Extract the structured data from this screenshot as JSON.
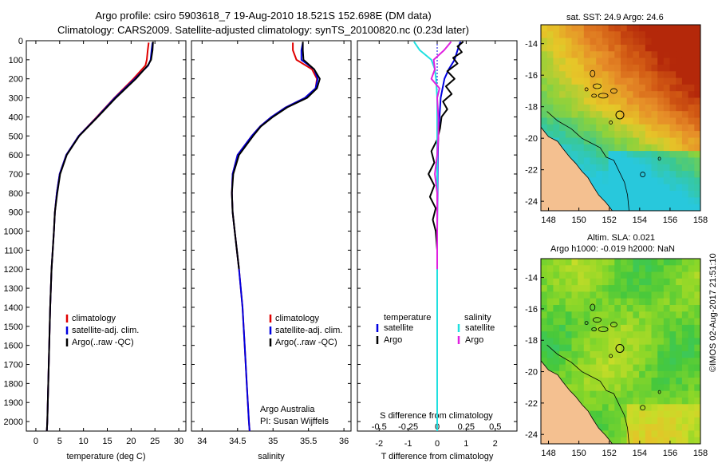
{
  "header": {
    "title_line1": "Argo profile: csiro 5903618_7 19-Aug-2010 18.521S 152.698E (DM data)",
    "title_line2": "Climatology: CARS2009. Satellite-adjusted climatology: synTS_20100820.nc (0.23d later)"
  },
  "colors": {
    "climatology": "#e00000",
    "satellite": "#0000e0",
    "argo": "#000000",
    "salinity_satellite": "#20e0e0",
    "salinity_argo": "#e020e0",
    "land": "#f4c090"
  },
  "chart_data": [
    {
      "type": "line",
      "name": "temperature",
      "xlabel": "temperature (deg C)",
      "xticks": [
        0,
        5,
        10,
        15,
        20,
        25,
        30
      ],
      "xlim": [
        -2,
        31.5
      ],
      "ylim": [
        0,
        2050
      ],
      "yticks": [
        0,
        100,
        200,
        300,
        400,
        500,
        600,
        700,
        800,
        900,
        1000,
        1100,
        1200,
        1300,
        1400,
        1500,
        1600,
        1700,
        1800,
        1900,
        2000
      ],
      "legend": [
        "climatology",
        "satellite-adj. clim.",
        "Argo(..raw -QC)"
      ],
      "series": [
        {
          "name": "climatology",
          "depth": [
            10,
            50,
            100,
            130,
            200,
            300,
            400,
            500,
            600,
            700,
            800,
            900,
            1000,
            1200,
            1400,
            1600,
            1800,
            2000,
            2050
          ],
          "values": [
            23.7,
            23.5,
            23.3,
            23.0,
            20.5,
            16.5,
            12.8,
            9.0,
            6.4,
            5.0,
            4.4,
            4.0,
            3.8,
            3.3,
            3.0,
            2.8,
            2.6,
            2.4,
            2.3
          ]
        },
        {
          "name": "satellite-adj. clim.",
          "depth": [
            10,
            50,
            100,
            130,
            200,
            300,
            400,
            500,
            600,
            700,
            800,
            900,
            1000,
            1200,
            1400,
            1600,
            1800,
            2000,
            2050
          ],
          "values": [
            24.5,
            24.3,
            24.1,
            23.6,
            20.8,
            16.6,
            12.9,
            9.0,
            6.4,
            5.0,
            4.4,
            4.0,
            3.8,
            3.3,
            3.0,
            2.8,
            2.6,
            2.4,
            2.3
          ]
        },
        {
          "name": "Argo(..raw -QC)",
          "depth": [
            5,
            50,
            100,
            130,
            200,
            300,
            400,
            500,
            600,
            700,
            800,
            900,
            1000,
            1200,
            1400,
            1600,
            1800,
            2000,
            2050
          ],
          "values": [
            24.6,
            24.5,
            24.2,
            23.5,
            21.0,
            16.8,
            13.0,
            9.1,
            6.5,
            5.1,
            4.5,
            4.0,
            3.8,
            3.3,
            3.0,
            2.8,
            2.6,
            2.4,
            2.3
          ]
        }
      ]
    },
    {
      "type": "line",
      "name": "salinity",
      "xlabel": "salinity",
      "xticks": [
        34,
        34.5,
        35,
        35.5,
        36
      ],
      "xlim": [
        33.85,
        36.1
      ],
      "ylim": [
        0,
        2050
      ],
      "legend": [
        "climatology",
        "satellite-adj. clim.",
        "Argo(..raw -QC)"
      ],
      "annotation": [
        "Argo Australia",
        "PI: Susan Wijffels"
      ],
      "series": [
        {
          "name": "climatology",
          "depth": [
            10,
            50,
            100,
            150,
            200,
            250,
            300,
            350,
            400,
            450,
            500,
            600,
            700,
            800,
            900,
            1000,
            1200,
            1400,
            1600,
            1800,
            2000,
            2050
          ],
          "values": [
            35.28,
            35.28,
            35.33,
            35.55,
            35.62,
            35.6,
            35.45,
            35.18,
            34.98,
            34.82,
            34.7,
            34.5,
            34.43,
            34.42,
            34.43,
            34.46,
            34.52,
            34.57,
            34.6,
            34.63,
            34.66,
            34.67
          ]
        },
        {
          "name": "satellite-adj. clim.",
          "depth": [
            10,
            50,
            100,
            150,
            200,
            250,
            300,
            350,
            400,
            450,
            500,
            600,
            700,
            800,
            900,
            1000,
            1200,
            1400,
            1600,
            1800,
            2000,
            2050
          ],
          "values": [
            35.42,
            35.4,
            35.4,
            35.58,
            35.63,
            35.6,
            35.45,
            35.18,
            34.98,
            34.82,
            34.7,
            34.5,
            34.43,
            34.42,
            34.43,
            34.46,
            34.52,
            34.57,
            34.6,
            34.63,
            34.66,
            34.67
          ]
        },
        {
          "name": "Argo(..raw -QC)",
          "depth": [
            5,
            50,
            100,
            150,
            200,
            250,
            300,
            350,
            400,
            450,
            500,
            600,
            700,
            800,
            900,
            1000,
            1200
          ],
          "values": [
            35.42,
            35.42,
            35.43,
            35.58,
            35.66,
            35.62,
            35.48,
            35.2,
            35.0,
            34.83,
            34.72,
            34.52,
            34.44,
            34.42,
            34.43,
            34.46,
            34.52
          ]
        }
      ]
    },
    {
      "type": "line",
      "name": "differences",
      "xlabel": "T difference from climatology",
      "xlabel_top": "S difference from climatology",
      "xticks_bottom": [
        -2,
        -1,
        0,
        1,
        2
      ],
      "xticks_top": [
        "-0.5",
        "-0.25",
        "0",
        "0.25",
        "0.5"
      ],
      "xlim": [
        -2.75,
        2.75
      ],
      "ylim": [
        0,
        2050
      ],
      "legend_left_title": "temperature",
      "legend_right_title": "salinity",
      "legend": [
        "satellite",
        "Argo",
        "satellite",
        "Argo"
      ],
      "series": [
        {
          "name": "temperature satellite",
          "depth": [
            5,
            50,
            100,
            150,
            200,
            300,
            400,
            500,
            600,
            800,
            1000,
            1200,
            2050
          ],
          "values": [
            0.8,
            0.7,
            0.6,
            0.4,
            0.25,
            0.12,
            0.08,
            0.04,
            0.02,
            0.01,
            0.0,
            0.0,
            0.0
          ]
        },
        {
          "name": "temperature Argo",
          "depth": [
            5,
            30,
            60,
            90,
            120,
            160,
            200,
            240,
            280,
            320,
            360,
            400,
            460,
            520,
            580,
            640,
            700,
            760,
            820,
            880,
            940,
            1000,
            1100,
            1200
          ],
          "values": [
            0.9,
            0.7,
            0.85,
            0.55,
            0.7,
            0.35,
            0.6,
            0.3,
            0.5,
            0.2,
            0.35,
            0.15,
            0.1,
            0.0,
            -0.2,
            -0.1,
            -0.3,
            -0.1,
            -0.25,
            -0.05,
            -0.15,
            -0.05,
            0.0,
            0.0
          ]
        },
        {
          "name": "salinity satellite",
          "depth": [
            5,
            50,
            100,
            150,
            200,
            300,
            400,
            500,
            600,
            800,
            1000,
            2050
          ],
          "values": [
            -0.2,
            -0.15,
            -0.05,
            -0.02,
            -0.01,
            0.0,
            0.0,
            0.0,
            0.0,
            0.0,
            0.0,
            0.0
          ]
        },
        {
          "name": "salinity Argo",
          "depth": [
            5,
            50,
            100,
            150,
            200,
            250,
            300,
            400,
            500,
            600,
            700,
            800,
            900,
            1000,
            1200
          ],
          "values": [
            0.12,
            0.06,
            -0.03,
            -0.02,
            -0.05,
            0.02,
            0.0,
            0.01,
            0.01,
            0.0,
            -0.02,
            0.0,
            0.0,
            0.0,
            0.0
          ]
        }
      ]
    },
    {
      "type": "heatmap",
      "name": "sst_map",
      "title": "sat. SST: 24.9 Argo: 24.6",
      "xticks": [
        148,
        150,
        152,
        154,
        156,
        158
      ],
      "yticks": [
        -14,
        -16,
        -18,
        -20,
        -22,
        -24
      ],
      "xlim": [
        147.5,
        158
      ],
      "ylim": [
        -24.6,
        -12.8
      ],
      "float_position": [
        152.698,
        -18.521
      ]
    },
    {
      "type": "heatmap",
      "name": "sla_map",
      "title_line1": "Altim. SLA: 0.021",
      "title_line2": "Argo h1000: -0.019 h2000: NaN",
      "xticks": [
        148,
        150,
        152,
        154,
        156,
        158
      ],
      "yticks": [
        -14,
        -16,
        -18,
        -20,
        -22,
        -24
      ],
      "xlim": [
        147.5,
        158
      ],
      "ylim": [
        -24.6,
        -12.8
      ],
      "float_position": [
        152.698,
        -18.521
      ]
    }
  ],
  "stamp": "©IMOS 02-Aug-2017 21:51:10"
}
